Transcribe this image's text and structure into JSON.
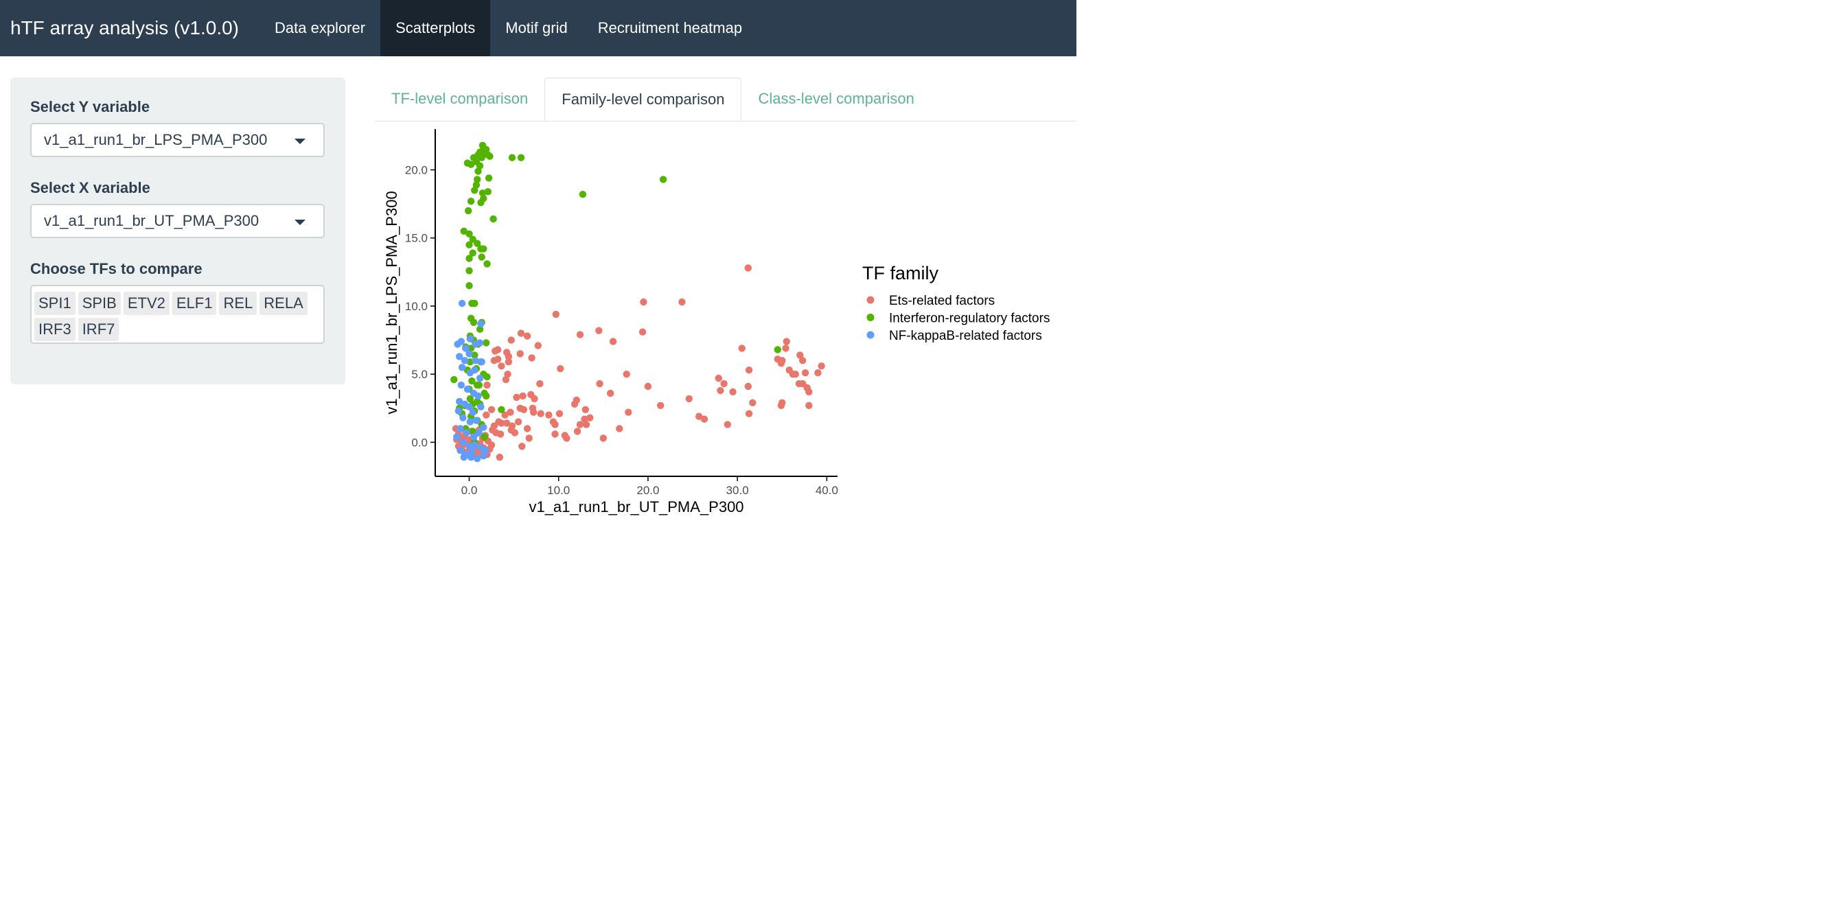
{
  "app": {
    "title": "hTF array analysis (v1.0.0)",
    "nav": [
      {
        "label": "Data explorer",
        "active": false
      },
      {
        "label": "Scatterplots",
        "active": true
      },
      {
        "label": "Motif grid",
        "active": false
      },
      {
        "label": "Recruitment heatmap",
        "active": false
      }
    ]
  },
  "sidebar": {
    "y_label": "Select Y variable",
    "y_value": "v1_a1_run1_br_LPS_PMA_P300",
    "x_label": "Select X variable",
    "x_value": "v1_a1_run1_br_UT_PMA_P300",
    "tfs_label": "Choose TFs to compare",
    "tfs": [
      "SPI1",
      "SPIB",
      "ETV2",
      "ELF1",
      "REL",
      "RELA",
      "IRF3",
      "IRF7"
    ]
  },
  "tabs": [
    {
      "label": "TF-level comparison",
      "active": false
    },
    {
      "label": "Family-level comparison",
      "active": true
    },
    {
      "label": "Class-level comparison",
      "active": false
    }
  ],
  "chart_data": {
    "type": "scatter",
    "xlabel": "v1_a1_run1_br_UT_PMA_P300",
    "ylabel": "v1_a1_run1_br_LPS_PMA_P300",
    "xlim": [
      -3.8,
      41.2
    ],
    "ylim": [
      -2.5,
      23.0
    ],
    "xticks": [
      0,
      10,
      20,
      30,
      40
    ],
    "xtick_labels": [
      "0.0",
      "10.0",
      "20.0",
      "30.0",
      "40.0"
    ],
    "yticks": [
      0,
      5,
      10,
      15,
      20
    ],
    "ytick_labels": [
      "0.0",
      "5.0",
      "10.0",
      "15.0",
      "20.0"
    ],
    "grid": false,
    "legend_title": "TF family",
    "legend_position": "right",
    "series": [
      {
        "name": "Ets-related factors",
        "color": "#e8766b",
        "points": [
          [
            31.2,
            12.8
          ],
          [
            19.5,
            10.3
          ],
          [
            23.8,
            10.3
          ],
          [
            9.7,
            9.4
          ],
          [
            12.4,
            7.9
          ],
          [
            14.5,
            8.2
          ],
          [
            19.4,
            8.1
          ],
          [
            5.8,
            8.0
          ],
          [
            6.5,
            7.8
          ],
          [
            4.7,
            7.5
          ],
          [
            16.1,
            7.4
          ],
          [
            7.7,
            7.1
          ],
          [
            2.9,
            6.7
          ],
          [
            3.2,
            6.8
          ],
          [
            4.2,
            6.6
          ],
          [
            4.4,
            6.3
          ],
          [
            5.7,
            6.5
          ],
          [
            7.0,
            6.2
          ],
          [
            3.2,
            6.1
          ],
          [
            2.8,
            6.0
          ],
          [
            4.4,
            5.9
          ],
          [
            3.6,
            5.6
          ],
          [
            4.3,
            5.0
          ],
          [
            10.2,
            5.4
          ],
          [
            4.1,
            4.6
          ],
          [
            17.6,
            5.0
          ],
          [
            20.0,
            4.1
          ],
          [
            14.6,
            4.3
          ],
          [
            2.0,
            4.2
          ],
          [
            7.9,
            4.3
          ],
          [
            5.3,
            3.3
          ],
          [
            6.0,
            3.4
          ],
          [
            6.9,
            3.5
          ],
          [
            7.3,
            3.2
          ],
          [
            12.0,
            3.1
          ],
          [
            11.8,
            2.8
          ],
          [
            15.8,
            3.6
          ],
          [
            24.6,
            3.2
          ],
          [
            27.9,
            4.7
          ],
          [
            28.5,
            4.3
          ],
          [
            28.1,
            3.8
          ],
          [
            29.5,
            3.7
          ],
          [
            30.5,
            6.9
          ],
          [
            31.3,
            5.3
          ],
          [
            31.2,
            4.1
          ],
          [
            31.7,
            2.9
          ],
          [
            34.5,
            6.1
          ],
          [
            35.0,
            6.0
          ],
          [
            35.5,
            7.4
          ],
          [
            35.4,
            6.9
          ],
          [
            34.9,
            5.8
          ],
          [
            36.5,
            5.0
          ],
          [
            37.0,
            6.4
          ],
          [
            37.3,
            6.0
          ],
          [
            35.8,
            5.3
          ],
          [
            36.2,
            5.0
          ],
          [
            36.9,
            4.3
          ],
          [
            37.3,
            4.3
          ],
          [
            37.8,
            4.0
          ],
          [
            38.0,
            3.7
          ],
          [
            39.0,
            5.1
          ],
          [
            39.4,
            5.6
          ],
          [
            37.6,
            5.1
          ],
          [
            35.0,
            2.9
          ],
          [
            34.9,
            2.7
          ],
          [
            38.0,
            2.7
          ],
          [
            31.3,
            2.1
          ],
          [
            2.5,
            2.4
          ],
          [
            1.9,
            2.0
          ],
          [
            3.3,
            1.5
          ],
          [
            4.0,
            2.0
          ],
          [
            4.6,
            2.2
          ],
          [
            5.7,
            2.5
          ],
          [
            6.1,
            2.4
          ],
          [
            7.1,
            2.5
          ],
          [
            7.2,
            2.2
          ],
          [
            8.0,
            2.1
          ],
          [
            8.9,
            2.0
          ],
          [
            10.1,
            2.1
          ],
          [
            13.0,
            2.4
          ],
          [
            12.9,
            1.7
          ],
          [
            13.5,
            1.8
          ],
          [
            17.8,
            2.2
          ],
          [
            21.4,
            2.7
          ],
          [
            25.7,
            1.9
          ],
          [
            26.3,
            1.7
          ],
          [
            28.9,
            1.3
          ],
          [
            2.8,
            1.2
          ],
          [
            3.6,
            1.4
          ],
          [
            4.2,
            1.4
          ],
          [
            4.8,
            1.2
          ],
          [
            5.5,
            1.5
          ],
          [
            6.5,
            1.0
          ],
          [
            9.4,
            1.5
          ],
          [
            9.6,
            1.3
          ],
          [
            12.4,
            1.3
          ],
          [
            13.1,
            1.3
          ],
          [
            16.8,
            1.0
          ],
          [
            2.6,
            0.9
          ],
          [
            3.0,
            0.7
          ],
          [
            3.5,
            0.6
          ],
          [
            4.7,
            0.9
          ],
          [
            5.1,
            0.7
          ],
          [
            6.7,
            0.3
          ],
          [
            9.6,
            0.6
          ],
          [
            10.7,
            0.5
          ],
          [
            10.9,
            0.3
          ],
          [
            12.1,
            0.8
          ],
          [
            15.0,
            0.3
          ],
          [
            -1.5,
            1.0
          ],
          [
            -1.2,
            0.6
          ],
          [
            -1.0,
            0.3
          ],
          [
            -0.8,
            0.0
          ],
          [
            -0.5,
            0.4
          ],
          [
            -0.2,
            -0.1
          ],
          [
            0.1,
            0.2
          ],
          [
            0.5,
            0.0
          ],
          [
            0.8,
            -0.3
          ],
          [
            1.2,
            -0.1
          ],
          [
            1.5,
            0.3
          ],
          [
            1.8,
            0.5
          ],
          [
            2.1,
            0.1
          ],
          [
            2.5,
            -0.2
          ],
          [
            -0.9,
            -0.5
          ],
          [
            -0.6,
            -0.7
          ],
          [
            -0.3,
            -0.9
          ],
          [
            0.0,
            -0.6
          ],
          [
            0.3,
            -0.8
          ],
          [
            0.6,
            -1.0
          ],
          [
            0.9,
            -0.7
          ],
          [
            1.4,
            -0.9
          ],
          [
            1.9,
            -0.6
          ],
          [
            2.3,
            -0.5
          ],
          [
            -1.2,
            -0.3
          ],
          [
            -0.4,
            0.7
          ],
          [
            0.2,
            0.8
          ],
          [
            0.7,
            0.6
          ],
          [
            1.1,
            0.9
          ],
          [
            2.0,
            -0.9
          ],
          [
            -0.7,
            -0.2
          ],
          [
            0.4,
            -0.4
          ],
          [
            1.6,
            -0.4
          ],
          [
            3.4,
            -1.1
          ],
          [
            5.9,
            -0.3
          ],
          [
            -1.4,
            0.2
          ],
          [
            0.0,
            0.0
          ]
        ]
      },
      {
        "name": "Interferon-regulatory factors",
        "color": "#53b400",
        "points": [
          [
            -0.2,
            20.5
          ],
          [
            0.2,
            20.4
          ],
          [
            0.5,
            20.9
          ],
          [
            0.8,
            20.6
          ],
          [
            1.0,
            21.1
          ],
          [
            1.2,
            21.3
          ],
          [
            1.4,
            20.9
          ],
          [
            1.6,
            21.6
          ],
          [
            1.8,
            21.3
          ],
          [
            2.1,
            21.1
          ],
          [
            2.3,
            21.0
          ],
          [
            1.5,
            21.8
          ],
          [
            1.9,
            21.5
          ],
          [
            1.2,
            20.3
          ],
          [
            1.0,
            19.9
          ],
          [
            0.9,
            19.3
          ],
          [
            0.8,
            18.9
          ],
          [
            0.6,
            18.5
          ],
          [
            1.5,
            18.3
          ],
          [
            2.1,
            18.4
          ],
          [
            1.6,
            17.9
          ],
          [
            1.3,
            17.6
          ],
          [
            0.2,
            17.7
          ],
          [
            -0.1,
            17.0
          ],
          [
            4.8,
            20.9
          ],
          [
            5.8,
            20.9
          ],
          [
            2.2,
            19.4
          ],
          [
            12.7,
            18.2
          ],
          [
            21.7,
            19.3
          ],
          [
            2.7,
            16.4
          ],
          [
            -0.6,
            15.5
          ],
          [
            0.0,
            15.3
          ],
          [
            0.4,
            14.9
          ],
          [
            0.0,
            14.5
          ],
          [
            0.9,
            14.6
          ],
          [
            1.3,
            14.2
          ],
          [
            1.6,
            14.2
          ],
          [
            0.4,
            13.9
          ],
          [
            1.4,
            13.6
          ],
          [
            0.0,
            13.5
          ],
          [
            2.0,
            13.1
          ],
          [
            0.0,
            12.6
          ],
          [
            0.0,
            11.5
          ],
          [
            0.3,
            10.2
          ],
          [
            0.6,
            10.2
          ],
          [
            0.2,
            9.1
          ],
          [
            0.5,
            8.8
          ],
          [
            1.4,
            8.8
          ],
          [
            1.2,
            8.3
          ],
          [
            0.1,
            7.8
          ],
          [
            0.5,
            7.5
          ],
          [
            -0.4,
            7.0
          ],
          [
            0.2,
            6.9
          ],
          [
            0.6,
            6.4
          ],
          [
            0.1,
            5.9
          ],
          [
            -0.2,
            5.3
          ],
          [
            0.8,
            5.4
          ],
          [
            -1.7,
            4.6
          ],
          [
            1.6,
            5.0
          ],
          [
            2.0,
            4.8
          ],
          [
            0.3,
            4.5
          ],
          [
            1.1,
            4.2
          ],
          [
            0.0,
            3.9
          ],
          [
            1.7,
            3.6
          ],
          [
            1.9,
            3.4
          ],
          [
            0.1,
            3.2
          ],
          [
            0.4,
            2.8
          ],
          [
            0.9,
            3.0
          ],
          [
            -0.5,
            2.7
          ],
          [
            -1.1,
            2.5
          ],
          [
            0.6,
            2.3
          ],
          [
            -0.8,
            2.1
          ],
          [
            0.2,
            1.9
          ],
          [
            0.9,
            1.6
          ],
          [
            1.4,
            1.3
          ],
          [
            -0.4,
            1.0
          ],
          [
            0.4,
            0.8
          ],
          [
            1.7,
            0.4
          ],
          [
            0.6,
            0.0
          ],
          [
            3.6,
            2.4
          ],
          [
            34.5,
            6.8
          ],
          [
            1.2,
            2.8
          ],
          [
            0.9,
            4.2
          ],
          [
            1.3,
            5.9
          ],
          [
            1.9,
            7.3
          ],
          [
            1.0,
            7.2
          ]
        ]
      },
      {
        "name": "NF-kappaB-related factors",
        "color": "#619cff",
        "points": [
          [
            -0.8,
            10.2
          ],
          [
            1.3,
            8.7
          ],
          [
            -0.9,
            7.4
          ],
          [
            -1.3,
            7.2
          ],
          [
            -0.4,
            6.9
          ],
          [
            0.1,
            7.6
          ],
          [
            0.7,
            7.2
          ],
          [
            1.2,
            7.3
          ],
          [
            -1.1,
            6.3
          ],
          [
            -0.5,
            6.0
          ],
          [
            0.0,
            6.5
          ],
          [
            0.7,
            6.0
          ],
          [
            1.4,
            5.9
          ],
          [
            -0.8,
            5.5
          ],
          [
            0.1,
            5.1
          ],
          [
            0.6,
            5.3
          ],
          [
            1.2,
            4.7
          ],
          [
            -0.9,
            4.2
          ],
          [
            -0.2,
            3.9
          ],
          [
            0.5,
            3.6
          ],
          [
            1.0,
            3.4
          ],
          [
            -1.1,
            3.0
          ],
          [
            -0.5,
            2.8
          ],
          [
            0.0,
            2.6
          ],
          [
            0.4,
            2.2
          ],
          [
            1.3,
            2.6
          ],
          [
            -0.7,
            1.8
          ],
          [
            0.1,
            1.5
          ],
          [
            0.8,
            1.6
          ],
          [
            -1.0,
            1.0
          ],
          [
            -0.3,
            0.7
          ],
          [
            0.5,
            0.4
          ],
          [
            1.1,
            0.7
          ],
          [
            -0.7,
            0.0
          ],
          [
            0.0,
            -0.3
          ],
          [
            0.6,
            -0.2
          ],
          [
            1.3,
            -0.4
          ],
          [
            -1.0,
            -0.6
          ],
          [
            -0.4,
            -0.9
          ],
          [
            0.3,
            -0.7
          ],
          [
            0.9,
            -1.2
          ],
          [
            1.6,
            -1.0
          ],
          [
            -0.6,
            -1.1
          ],
          [
            0.2,
            -1.1
          ],
          [
            1.8,
            -0.6
          ],
          [
            -1.4,
            0.4
          ],
          [
            -1.2,
            2.3
          ],
          [
            1.6,
            1.1
          ]
        ]
      }
    ]
  }
}
